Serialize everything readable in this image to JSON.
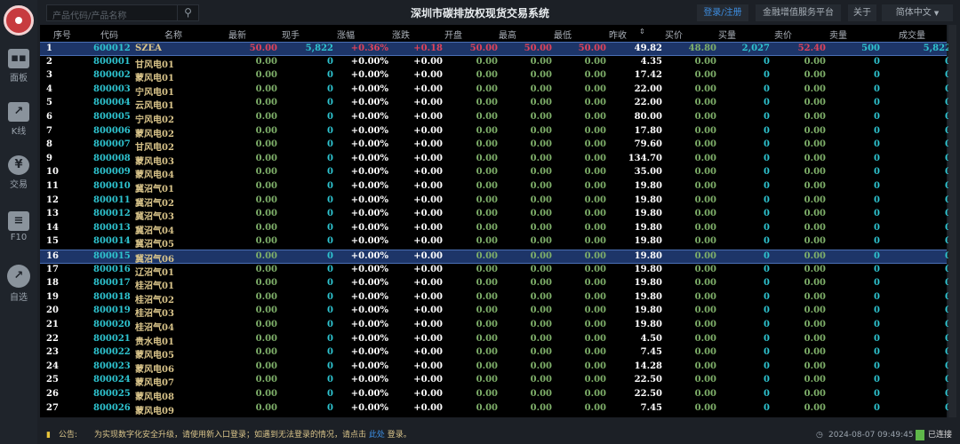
{
  "app": {
    "title": "深圳市碳排放权现货交易系统"
  },
  "search": {
    "placeholder": "产品代码/产品名称"
  },
  "topbar": {
    "login": "登录/注册",
    "platform": "金融增值服务平台",
    "about": "关于",
    "language": "简体中文"
  },
  "sidebar": {
    "items": [
      {
        "label": "面板",
        "icon": "dashboard-icon"
      },
      {
        "label": "K线",
        "icon": "kline-icon"
      },
      {
        "label": "交易",
        "icon": "trade-yen-icon"
      },
      {
        "label": "F10",
        "icon": "document-icon"
      },
      {
        "label": "自选",
        "icon": "favorites-icon"
      }
    ]
  },
  "table": {
    "columns": [
      "序号",
      "代码",
      "名称",
      "最新",
      "现手",
      "涨幅",
      "涨跌",
      "开盘",
      "最高",
      "最低",
      "昨收",
      "买价",
      "买量",
      "卖价",
      "卖量",
      "成交量"
    ],
    "sort_column": "昨收",
    "selected_rows": [
      1,
      16
    ],
    "rows": [
      [
        "1",
        "600012",
        "SZEA",
        "50.00",
        "5,822",
        "+0.36%",
        "+0.18",
        "50.00",
        "50.00",
        "50.00",
        "49.82",
        "48.80",
        "2,027",
        "52.40",
        "500",
        "5,822"
      ],
      [
        "2",
        "800001",
        "甘风电01",
        "0.00",
        "0",
        "+0.00%",
        "+0.00",
        "0.00",
        "0.00",
        "0.00",
        "4.35",
        "0.00",
        "0",
        "0.00",
        "0",
        "0"
      ],
      [
        "3",
        "800002",
        "蒙风电01",
        "0.00",
        "0",
        "+0.00%",
        "+0.00",
        "0.00",
        "0.00",
        "0.00",
        "17.42",
        "0.00",
        "0",
        "0.00",
        "0",
        "0"
      ],
      [
        "4",
        "800003",
        "宁风电01",
        "0.00",
        "0",
        "+0.00%",
        "+0.00",
        "0.00",
        "0.00",
        "0.00",
        "22.00",
        "0.00",
        "0",
        "0.00",
        "0",
        "0"
      ],
      [
        "5",
        "800004",
        "云风电01",
        "0.00",
        "0",
        "+0.00%",
        "+0.00",
        "0.00",
        "0.00",
        "0.00",
        "22.00",
        "0.00",
        "0",
        "0.00",
        "0",
        "0"
      ],
      [
        "6",
        "800005",
        "宁风电02",
        "0.00",
        "0",
        "+0.00%",
        "+0.00",
        "0.00",
        "0.00",
        "0.00",
        "80.00",
        "0.00",
        "0",
        "0.00",
        "0",
        "0"
      ],
      [
        "7",
        "800006",
        "蒙风电02",
        "0.00",
        "0",
        "+0.00%",
        "+0.00",
        "0.00",
        "0.00",
        "0.00",
        "17.80",
        "0.00",
        "0",
        "0.00",
        "0",
        "0"
      ],
      [
        "8",
        "800007",
        "甘风电02",
        "0.00",
        "0",
        "+0.00%",
        "+0.00",
        "0.00",
        "0.00",
        "0.00",
        "79.60",
        "0.00",
        "0",
        "0.00",
        "0",
        "0"
      ],
      [
        "9",
        "800008",
        "蒙风电03",
        "0.00",
        "0",
        "+0.00%",
        "+0.00",
        "0.00",
        "0.00",
        "0.00",
        "134.70",
        "0.00",
        "0",
        "0.00",
        "0",
        "0"
      ],
      [
        "10",
        "800009",
        "蒙风电04",
        "0.00",
        "0",
        "+0.00%",
        "+0.00",
        "0.00",
        "0.00",
        "0.00",
        "35.00",
        "0.00",
        "0",
        "0.00",
        "0",
        "0"
      ],
      [
        "11",
        "800010",
        "冀沼气01",
        "0.00",
        "0",
        "+0.00%",
        "+0.00",
        "0.00",
        "0.00",
        "0.00",
        "19.80",
        "0.00",
        "0",
        "0.00",
        "0",
        "0"
      ],
      [
        "12",
        "800011",
        "冀沼气02",
        "0.00",
        "0",
        "+0.00%",
        "+0.00",
        "0.00",
        "0.00",
        "0.00",
        "19.80",
        "0.00",
        "0",
        "0.00",
        "0",
        "0"
      ],
      [
        "13",
        "800012",
        "冀沼气03",
        "0.00",
        "0",
        "+0.00%",
        "+0.00",
        "0.00",
        "0.00",
        "0.00",
        "19.80",
        "0.00",
        "0",
        "0.00",
        "0",
        "0"
      ],
      [
        "14",
        "800013",
        "冀沼气04",
        "0.00",
        "0",
        "+0.00%",
        "+0.00",
        "0.00",
        "0.00",
        "0.00",
        "19.80",
        "0.00",
        "0",
        "0.00",
        "0",
        "0"
      ],
      [
        "15",
        "800014",
        "冀沼气05",
        "0.00",
        "0",
        "+0.00%",
        "+0.00",
        "0.00",
        "0.00",
        "0.00",
        "19.80",
        "0.00",
        "0",
        "0.00",
        "0",
        "0"
      ],
      [
        "16",
        "800015",
        "冀沼气06",
        "0.00",
        "0",
        "+0.00%",
        "+0.00",
        "0.00",
        "0.00",
        "0.00",
        "19.80",
        "0.00",
        "0",
        "0.00",
        "0",
        "0"
      ],
      [
        "17",
        "800016",
        "辽沼气01",
        "0.00",
        "0",
        "+0.00%",
        "+0.00",
        "0.00",
        "0.00",
        "0.00",
        "19.80",
        "0.00",
        "0",
        "0.00",
        "0",
        "0"
      ],
      [
        "18",
        "800017",
        "桂沼气01",
        "0.00",
        "0",
        "+0.00%",
        "+0.00",
        "0.00",
        "0.00",
        "0.00",
        "19.80",
        "0.00",
        "0",
        "0.00",
        "0",
        "0"
      ],
      [
        "19",
        "800018",
        "桂沼气02",
        "0.00",
        "0",
        "+0.00%",
        "+0.00",
        "0.00",
        "0.00",
        "0.00",
        "19.80",
        "0.00",
        "0",
        "0.00",
        "0",
        "0"
      ],
      [
        "20",
        "800019",
        "桂沼气03",
        "0.00",
        "0",
        "+0.00%",
        "+0.00",
        "0.00",
        "0.00",
        "0.00",
        "19.80",
        "0.00",
        "0",
        "0.00",
        "0",
        "0"
      ],
      [
        "21",
        "800020",
        "桂沼气04",
        "0.00",
        "0",
        "+0.00%",
        "+0.00",
        "0.00",
        "0.00",
        "0.00",
        "19.80",
        "0.00",
        "0",
        "0.00",
        "0",
        "0"
      ],
      [
        "22",
        "800021",
        "贵水电01",
        "0.00",
        "0",
        "+0.00%",
        "+0.00",
        "0.00",
        "0.00",
        "0.00",
        "4.50",
        "0.00",
        "0",
        "0.00",
        "0",
        "0"
      ],
      [
        "23",
        "800022",
        "蒙风电05",
        "0.00",
        "0",
        "+0.00%",
        "+0.00",
        "0.00",
        "0.00",
        "0.00",
        "7.45",
        "0.00",
        "0",
        "0.00",
        "0",
        "0"
      ],
      [
        "24",
        "800023",
        "蒙风电06",
        "0.00",
        "0",
        "+0.00%",
        "+0.00",
        "0.00",
        "0.00",
        "0.00",
        "14.28",
        "0.00",
        "0",
        "0.00",
        "0",
        "0"
      ],
      [
        "25",
        "800024",
        "蒙风电07",
        "0.00",
        "0",
        "+0.00%",
        "+0.00",
        "0.00",
        "0.00",
        "0.00",
        "22.50",
        "0.00",
        "0",
        "0.00",
        "0",
        "0"
      ],
      [
        "26",
        "800025",
        "蒙风电08",
        "0.00",
        "0",
        "+0.00%",
        "+0.00",
        "0.00",
        "0.00",
        "0.00",
        "22.50",
        "0.00",
        "0",
        "0.00",
        "0",
        "0"
      ],
      [
        "27",
        "800026",
        "蒙风电09",
        "0.00",
        "0",
        "+0.00%",
        "+0.00",
        "0.00",
        "0.00",
        "0.00",
        "7.45",
        "0.00",
        "0",
        "0.00",
        "0",
        "0"
      ]
    ]
  },
  "colors": {
    "up": "#e0435a",
    "code": "#2ec4d0",
    "name": "#d9c48a",
    "zero": "#7fb06a",
    "white": "#ffffff",
    "buy": "#7fb06a",
    "link": "#3d8de0",
    "selected": "#1d3568"
  },
  "footer": {
    "notice_label": "公告:",
    "notice_text": "为实现数字化安全升级，请使用新入口登录；如遇到无法登录的情况，请点击",
    "notice_link": "此处",
    "notice_end": "登录。",
    "datetime": "2024-08-07 09:49:45",
    "status": "已连接"
  }
}
